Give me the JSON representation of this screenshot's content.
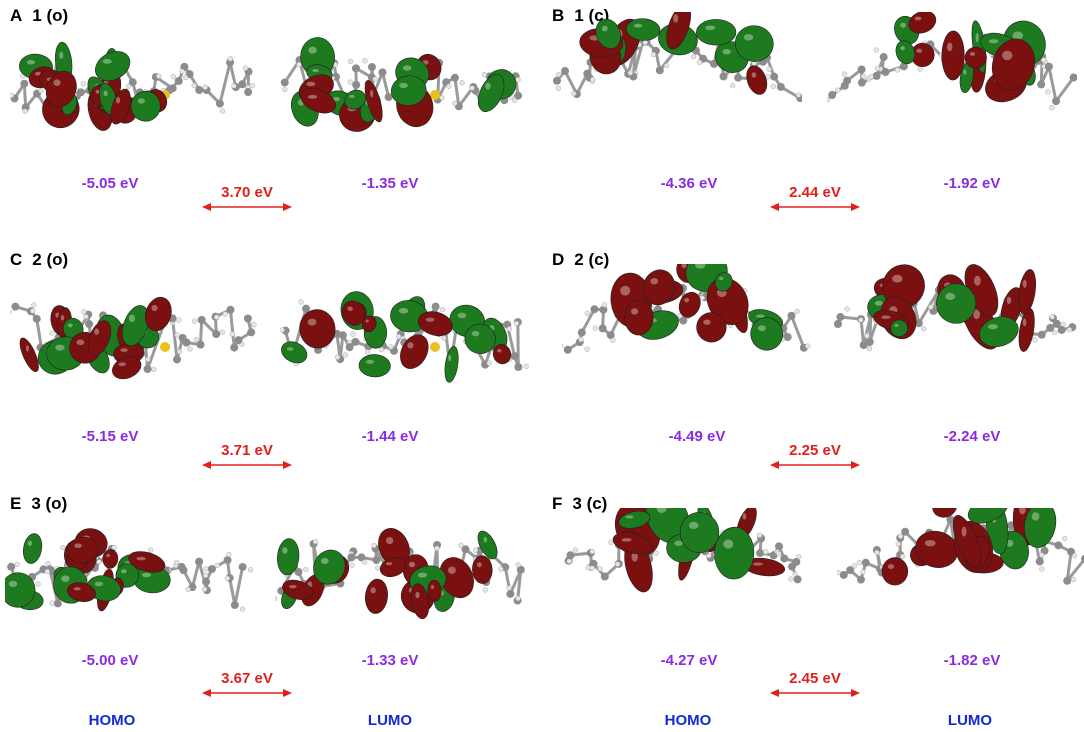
{
  "colors": {
    "homo_lumo_energy": "#8a2be2",
    "gap": "#e0201c",
    "footer": "#1428d8",
    "lobe_green": "#1e7a1e",
    "lobe_red": "#7a1010"
  },
  "panels": [
    {
      "letter": "A",
      "compound": "1 (o)",
      "homo": "-5.05 eV",
      "lumo": "-1.35 eV",
      "gap": "3.70 eV"
    },
    {
      "letter": "B",
      "compound": "1 (c)",
      "homo": "-4.36 eV",
      "lumo": "-1.92 eV",
      "gap": "2.44 eV"
    },
    {
      "letter": "C",
      "compound": "2 (o)",
      "homo": "-5.15 eV",
      "lumo": "-1.44 eV",
      "gap": "3.71 eV"
    },
    {
      "letter": "D",
      "compound": "2 (c)",
      "homo": "-4.49 eV",
      "lumo": "-2.24 eV",
      "gap": "2.25 eV"
    },
    {
      "letter": "E",
      "compound": "3 (o)",
      "homo": "-5.00 eV",
      "lumo": "-1.33 eV",
      "gap": "3.67 eV"
    },
    {
      "letter": "F",
      "compound": "3 (c)",
      "homo": "-4.27 eV",
      "lumo": "-1.82 eV",
      "gap": "2.45 eV"
    }
  ],
  "footer": {
    "homo_left": "HOMO",
    "lumo_left": "LUMO",
    "homo_right": "HOMO",
    "lumo_right": "LUMO"
  }
}
